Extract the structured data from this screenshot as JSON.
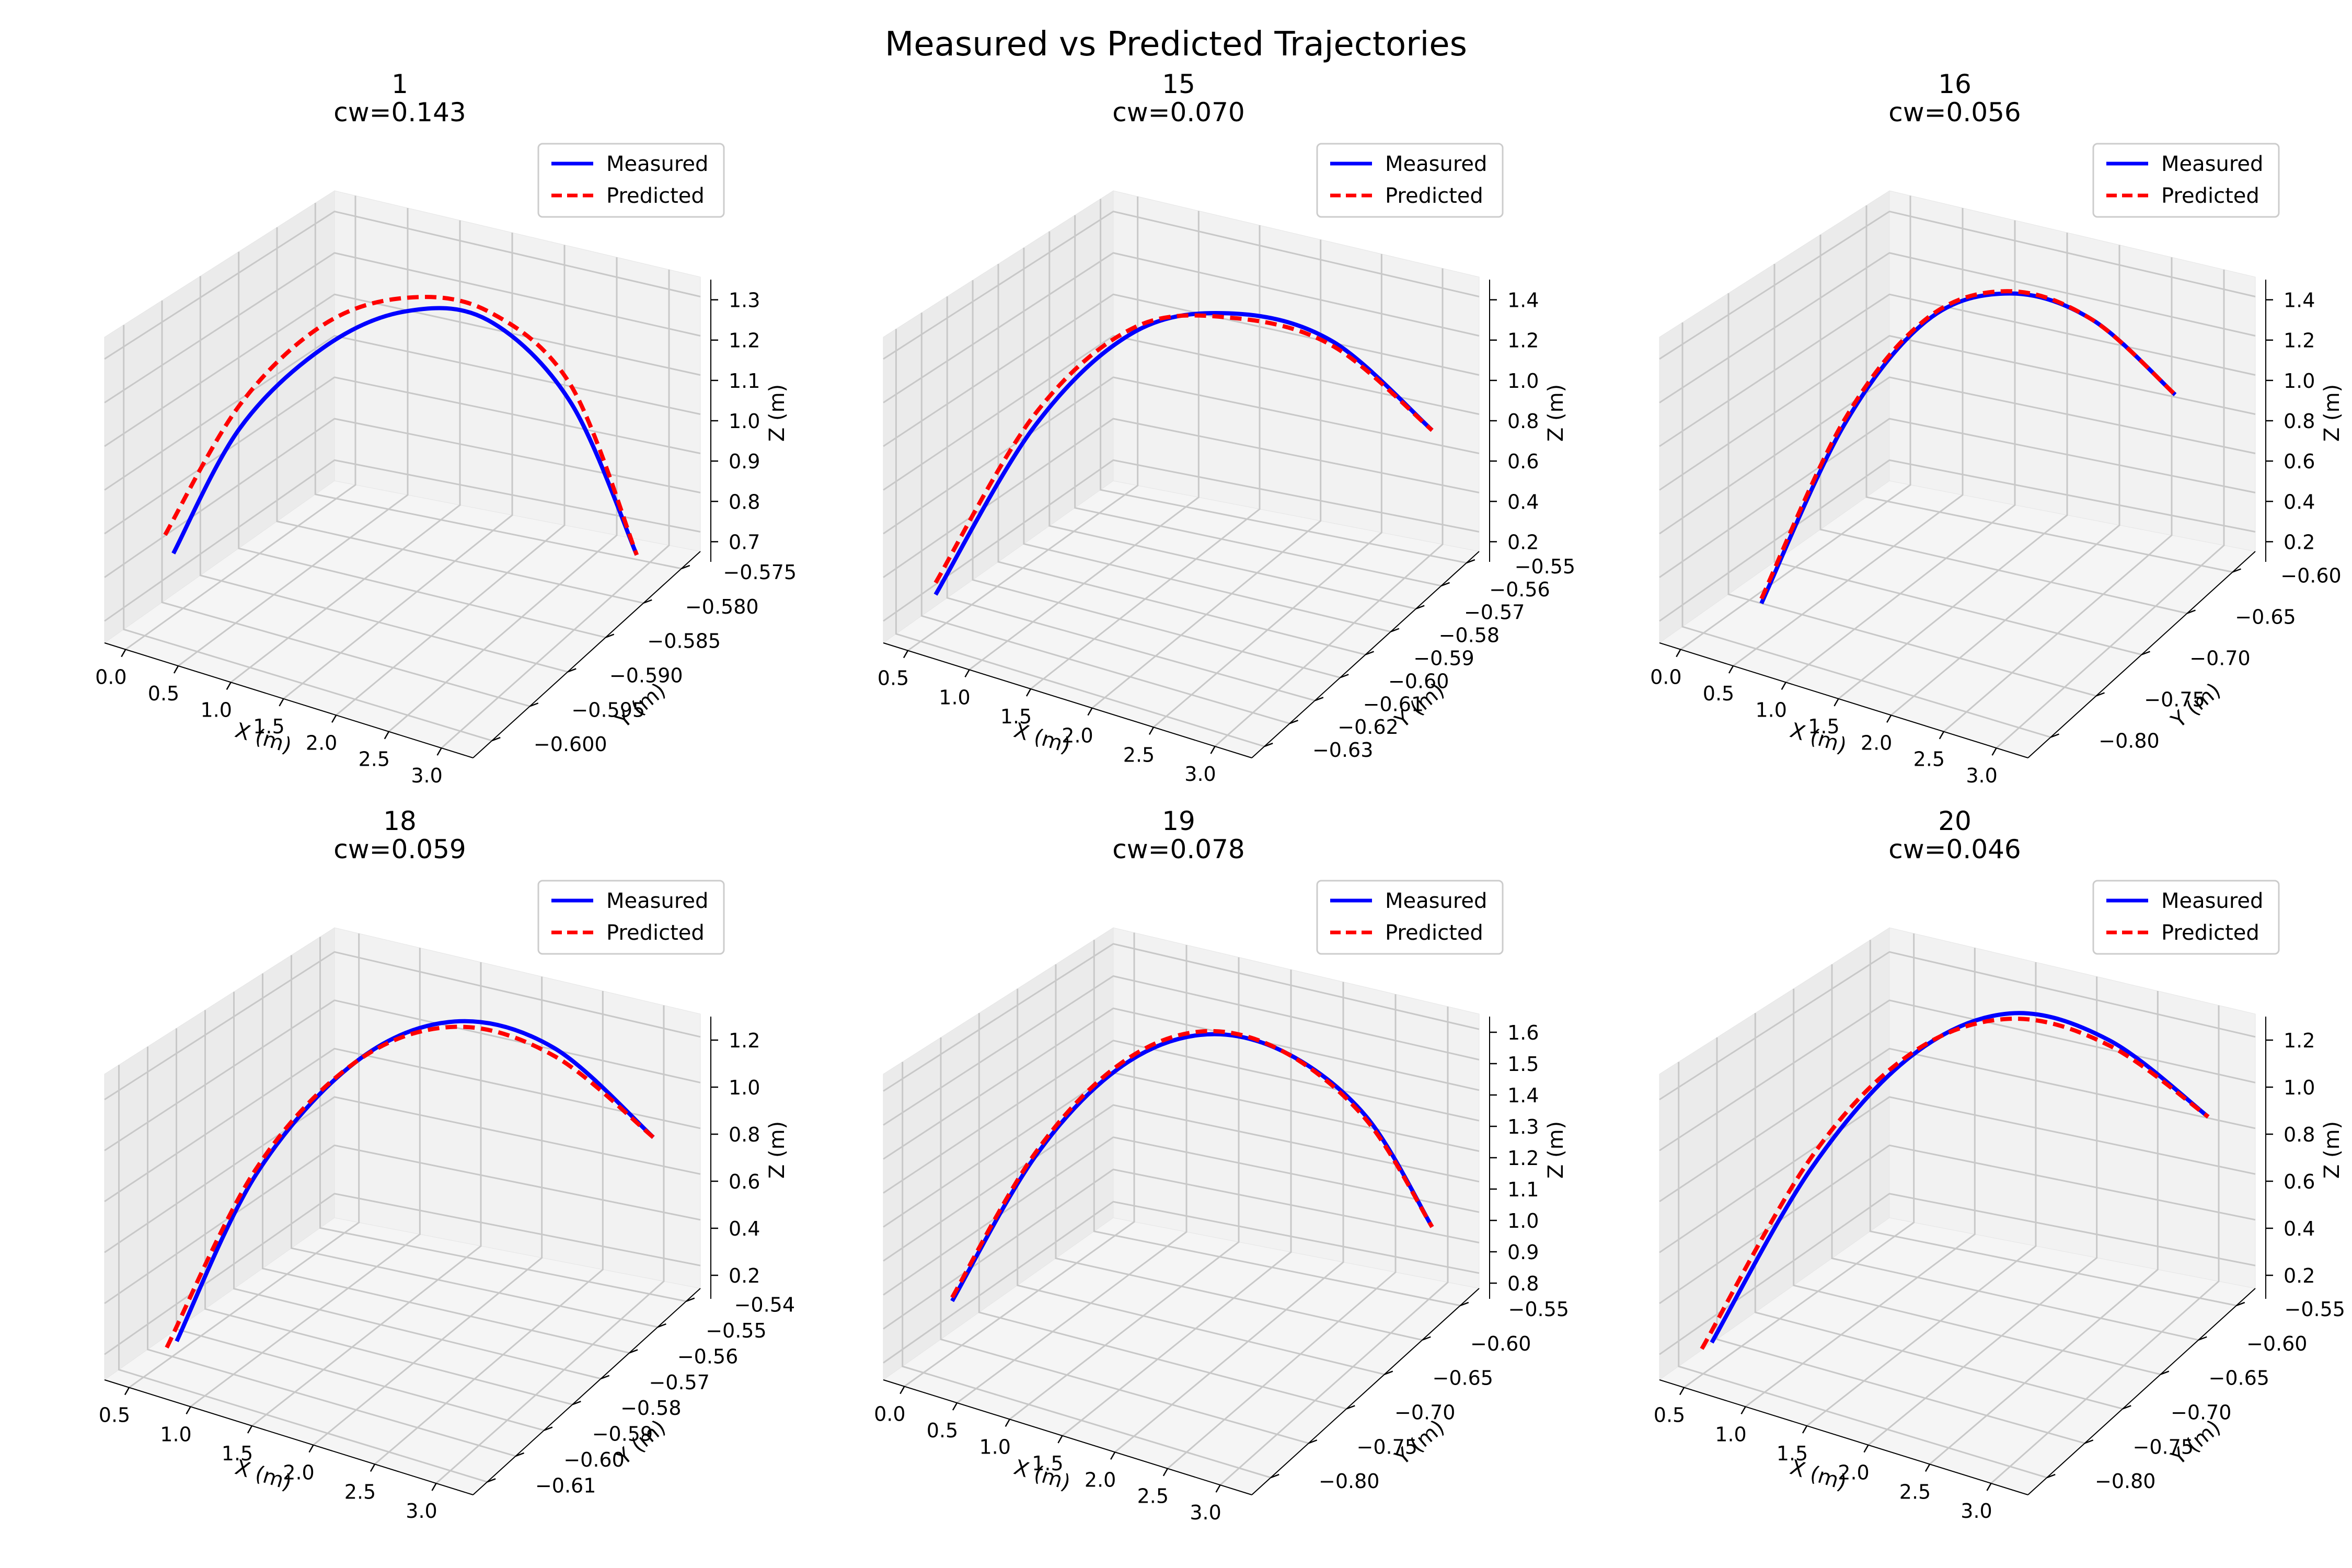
{
  "figure": {
    "title": "Measured vs Predicted Trajectories"
  },
  "colors": {
    "measured": "#0000ff",
    "predicted": "#ff0000"
  },
  "chart_data": [
    {
      "type": "line3d",
      "title": "1",
      "subtitle": "cw=0.143",
      "xlabel": "X (m)",
      "ylabel": "Y (m)",
      "zlabel": "Z (m)",
      "xticks": [
        "0.0",
        "0.5",
        "1.0",
        "1.5",
        "2.0",
        "2.5",
        "3.0"
      ],
      "yticks": [
        "−0.575",
        "−0.580",
        "−0.585",
        "−0.590",
        "−0.595",
        "−0.600"
      ],
      "zticks": [
        "1.3",
        "1.2",
        "1.1",
        "1.0",
        "0.9",
        "0.8",
        "0.7"
      ],
      "legend": [
        "Measured",
        "Predicted"
      ],
      "series": [
        {
          "name": "Measured",
          "x": [
            0.1,
            0.5,
            1.0,
            1.5,
            2.0,
            2.5,
            2.9
          ],
          "z": [
            0.76,
            1.02,
            1.19,
            1.27,
            1.25,
            1.06,
            0.7
          ]
        },
        {
          "name": "Predicted",
          "x": [
            0.05,
            0.5,
            1.0,
            1.5,
            2.0,
            2.5,
            2.9
          ],
          "z": [
            0.8,
            1.07,
            1.24,
            1.3,
            1.27,
            1.1,
            0.7
          ]
        }
      ]
    },
    {
      "type": "line3d",
      "title": "15",
      "subtitle": "cw=0.070",
      "xlabel": "X (m)",
      "ylabel": "Y (m)",
      "zlabel": "Z (m)",
      "xticks": [
        "0.5",
        "1.0",
        "1.5",
        "2.0",
        "2.5",
        "3.0"
      ],
      "yticks": [
        "−0.55",
        "−0.56",
        "−0.57",
        "−0.58",
        "−0.59",
        "−0.60",
        "−0.61",
        "−0.62",
        "−0.63"
      ],
      "zticks": [
        "1.4",
        "1.2",
        "1.0",
        "0.8",
        "0.6",
        "0.4",
        "0.2"
      ],
      "legend": [
        "Measured",
        "Predicted"
      ],
      "series": [
        {
          "name": "Measured",
          "x": [
            0.5,
            1.0,
            1.5,
            2.0,
            2.5,
            3.0
          ],
          "z": [
            0.15,
            0.85,
            1.25,
            1.33,
            1.2,
            0.78
          ]
        },
        {
          "name": "Predicted",
          "x": [
            0.5,
            1.0,
            1.5,
            2.0,
            2.5,
            3.0
          ],
          "z": [
            0.2,
            0.9,
            1.27,
            1.31,
            1.18,
            0.78
          ]
        }
      ]
    },
    {
      "type": "line3d",
      "title": "16",
      "subtitle": "cw=0.056",
      "xlabel": "X (m)",
      "ylabel": "Y (m)",
      "zlabel": "Z (m)",
      "xticks": [
        "0.0",
        "0.5",
        "1.0",
        "1.5",
        "2.0",
        "2.5",
        "3.0"
      ],
      "yticks": [
        "−0.60",
        "−0.65",
        "−0.70",
        "−0.75",
        "−0.80"
      ],
      "zticks": [
        "1.4",
        "1.2",
        "1.0",
        "0.8",
        "0.6",
        "0.4",
        "0.2"
      ],
      "legend": [
        "Measured",
        "Predicted"
      ],
      "series": [
        {
          "name": "Measured",
          "x": [
            0.3,
            0.8,
            1.3,
            1.8,
            2.3,
            2.8
          ],
          "z": [
            0.1,
            0.85,
            1.3,
            1.42,
            1.3,
            0.95
          ]
        },
        {
          "name": "Predicted",
          "x": [
            0.3,
            0.8,
            1.3,
            1.8,
            2.3,
            2.8
          ],
          "z": [
            0.12,
            0.87,
            1.31,
            1.43,
            1.3,
            0.95
          ]
        }
      ]
    },
    {
      "type": "line3d",
      "title": "18",
      "subtitle": "cw=0.059",
      "xlabel": "X (m)",
      "ylabel": "Y (m)",
      "zlabel": "Z (m)",
      "xticks": [
        "0.5",
        "1.0",
        "1.5",
        "2.0",
        "2.5",
        "3.0"
      ],
      "yticks": [
        "−0.54",
        "−0.55",
        "−0.56",
        "−0.57",
        "−0.58",
        "−0.59",
        "−0.60",
        "−0.61"
      ],
      "zticks": [
        "1.2",
        "1.0",
        "0.8",
        "0.6",
        "0.4",
        "0.2"
      ],
      "legend": [
        "Measured",
        "Predicted"
      ],
      "series": [
        {
          "name": "Measured",
          "x": [
            0.6,
            1.0,
            1.5,
            2.0,
            2.5,
            3.0
          ],
          "z": [
            0.12,
            0.7,
            1.1,
            1.25,
            1.15,
            0.8
          ]
        },
        {
          "name": "Predicted",
          "x": [
            0.55,
            1.0,
            1.5,
            2.0,
            2.5,
            3.0
          ],
          "z": [
            0.1,
            0.72,
            1.1,
            1.23,
            1.12,
            0.8
          ]
        }
      ]
    },
    {
      "type": "line3d",
      "title": "19",
      "subtitle": "cw=0.078",
      "xlabel": "X (m)",
      "ylabel": "Y (m)",
      "zlabel": "Z (m)",
      "xticks": [
        "0.0",
        "0.5",
        "1.0",
        "1.5",
        "2.0",
        "2.5",
        "3.0"
      ],
      "yticks": [
        "−0.55",
        "−0.60",
        "−0.65",
        "−0.70",
        "−0.75",
        "−0.80"
      ],
      "zticks": [
        "1.6",
        "1.5",
        "1.4",
        "1.3",
        "1.2",
        "1.1",
        "1.0",
        "0.9",
        "0.8"
      ],
      "legend": [
        "Measured",
        "Predicted"
      ],
      "series": [
        {
          "name": "Measured",
          "x": [
            0.1,
            0.6,
            1.1,
            1.6,
            2.1,
            2.6,
            3.0
          ],
          "z": [
            0.85,
            1.25,
            1.5,
            1.6,
            1.55,
            1.35,
            1.0
          ]
        },
        {
          "name": "Predicted",
          "x": [
            0.1,
            0.6,
            1.1,
            1.6,
            2.1,
            2.6,
            3.0
          ],
          "z": [
            0.86,
            1.26,
            1.51,
            1.61,
            1.55,
            1.34,
            1.0
          ]
        }
      ]
    },
    {
      "type": "line3d",
      "title": "20",
      "subtitle": "cw=0.046",
      "xlabel": "X (m)",
      "ylabel": "Y (m)",
      "zlabel": "Z (m)",
      "xticks": [
        "0.5",
        "1.0",
        "1.5",
        "2.0",
        "2.5",
        "3.0"
      ],
      "yticks": [
        "−0.55",
        "−0.60",
        "−0.65",
        "−0.70",
        "−0.75",
        "−0.80"
      ],
      "zticks": [
        "1.2",
        "1.0",
        "0.8",
        "0.6",
        "0.4",
        "0.2"
      ],
      "legend": [
        "Measured",
        "Predicted"
      ],
      "series": [
        {
          "name": "Measured",
          "x": [
            0.5,
            1.0,
            1.5,
            2.0,
            2.5,
            3.0
          ],
          "z": [
            0.12,
            0.72,
            1.12,
            1.28,
            1.18,
            0.88
          ]
        },
        {
          "name": "Predicted",
          "x": [
            0.45,
            1.0,
            1.5,
            2.0,
            2.5,
            3.0
          ],
          "z": [
            0.1,
            0.76,
            1.13,
            1.26,
            1.16,
            0.88
          ]
        }
      ]
    }
  ]
}
